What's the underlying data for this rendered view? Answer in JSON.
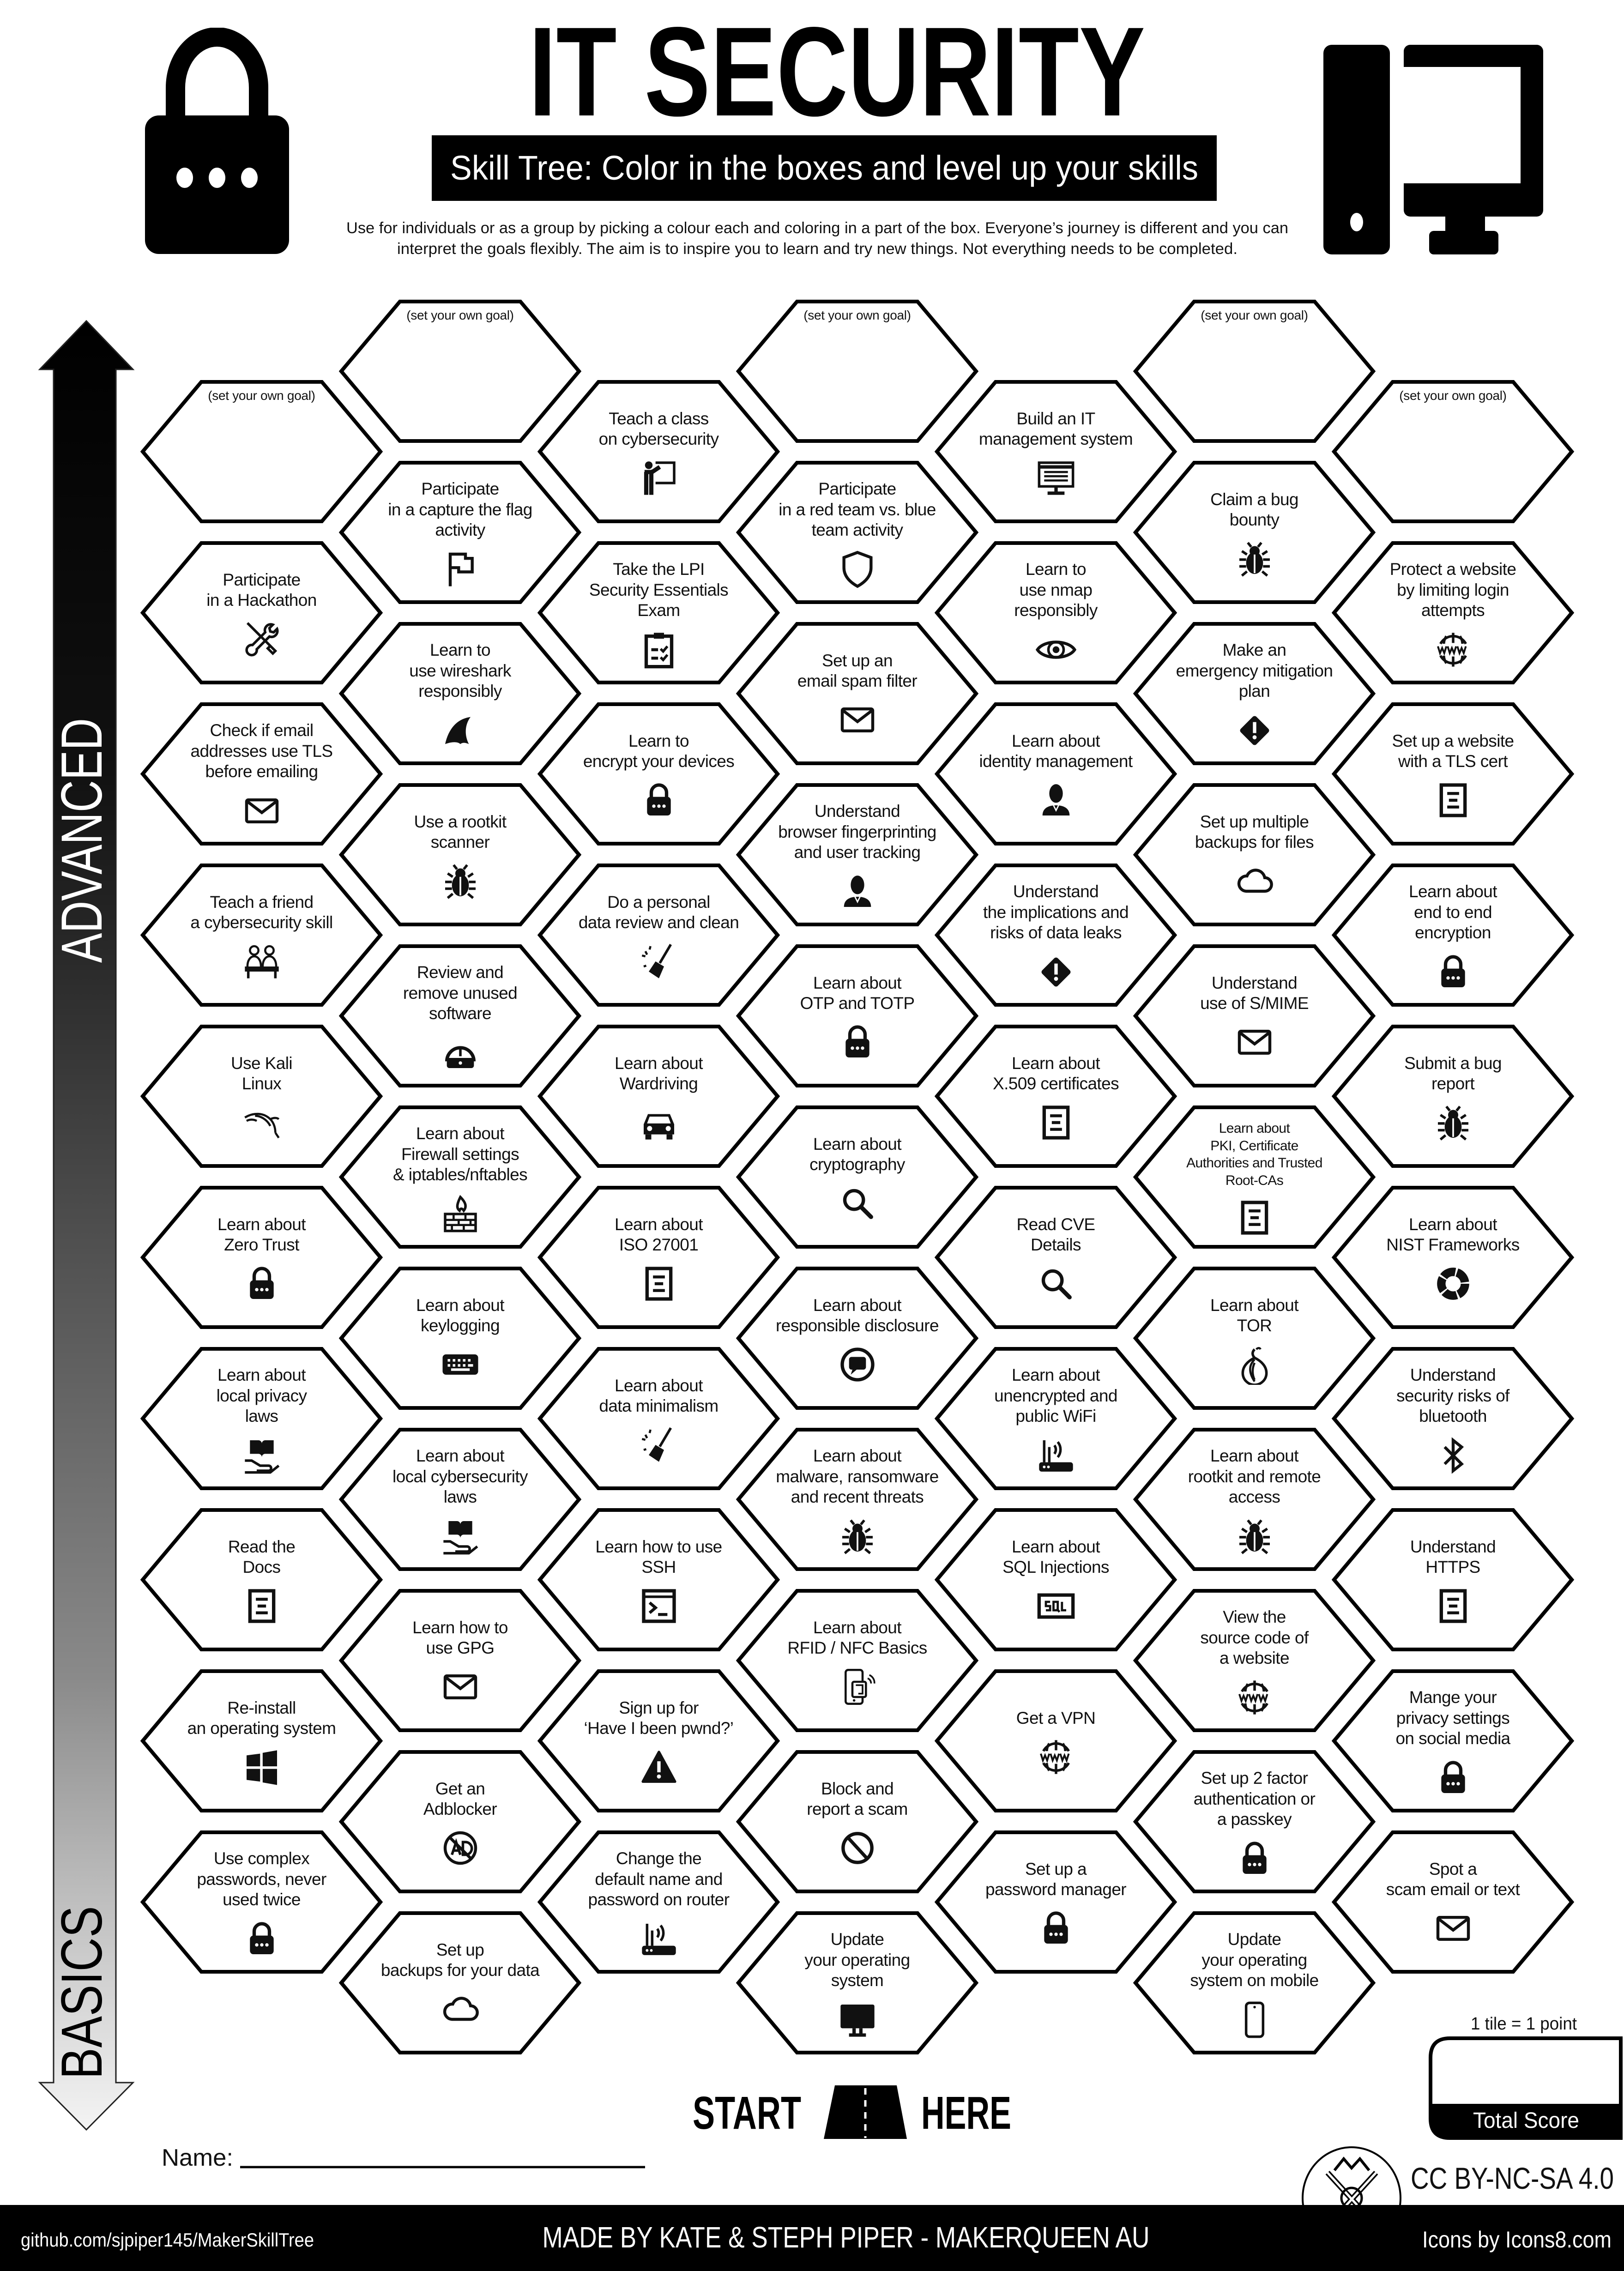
{
  "header": {
    "title": "IT SECURITY",
    "subtitle": "Skill Tree:  Color in the boxes and level up your skills",
    "description": [
      "Use for individuals or as a group by picking a colour each and coloring in a part of the box.  Everyone’s journey is different and you can",
      "interpret the goals flexibly.  The aim is to inspire you to learn and try new things. Not everything needs to be completed."
    ],
    "left_icon": "padlock-icon",
    "right_icon": "desktop-computer-icon"
  },
  "axis": {
    "top_label": "ADVANCED",
    "bottom_label": "BASICS"
  },
  "tiles": [
    [
      {
        "custom": "(set your own goal)"
      },
      {
        "lines": [
          "Participate",
          "in a Hackathon"
        ],
        "icon": "tools"
      },
      {
        "lines": [
          "Check if email",
          "addresses use TLS",
          "before emailing"
        ],
        "icon": "mail"
      },
      {
        "lines": [
          "Teach a friend",
          "a cybersecurity skill"
        ],
        "icon": "people"
      },
      {
        "lines": [
          "Use Kali",
          "Linux"
        ],
        "icon": "kali-dragon"
      },
      {
        "lines": [
          "Learn about",
          "Zero Trust"
        ],
        "icon": "lock"
      },
      {
        "lines": [
          "Learn about",
          "local privacy",
          "laws"
        ],
        "icon": "law-book"
      },
      {
        "lines": [
          "Read the",
          "Docs"
        ],
        "icon": "document"
      },
      {
        "lines": [
          "Re-install",
          "an operating system"
        ],
        "icon": "windows"
      },
      {
        "lines": [
          "Use complex",
          "passwords, never",
          "used twice"
        ],
        "icon": "lock"
      }
    ],
    [
      {
        "custom": "(set your own goal)"
      },
      {
        "lines": [
          "Participate",
          "in a capture the flag",
          "activity"
        ],
        "icon": "flag"
      },
      {
        "lines": [
          "Learn to",
          "use wireshark",
          "responsibly"
        ],
        "icon": "shark-fin"
      },
      {
        "lines": [
          "Use a rootkit",
          "scanner"
        ],
        "icon": "bug"
      },
      {
        "lines": [
          "Review and",
          "remove unused",
          "software"
        ],
        "icon": "uninstall"
      },
      {
        "lines": [
          "Learn about",
          "Firewall settings",
          "& iptables/nftables"
        ],
        "icon": "firewall"
      },
      {
        "lines": [
          "Learn about",
          "keylogging"
        ],
        "icon": "keyboard"
      },
      {
        "lines": [
          "Learn about",
          "local cybersecurity",
          "laws"
        ],
        "icon": "law-book"
      },
      {
        "lines": [
          "Learn how to",
          "use GPG"
        ],
        "icon": "mail"
      },
      {
        "lines": [
          "Get an",
          "Adblocker"
        ],
        "icon": "no-ad"
      },
      {
        "lines": [
          "Set up",
          "backups for your data"
        ],
        "icon": "cloud"
      }
    ],
    [
      {
        "lines": [
          "Teach a class",
          "on cybersecurity"
        ],
        "icon": "teacher"
      },
      {
        "lines": [
          "Take the LPI",
          "Security Essentials",
          "Exam"
        ],
        "icon": "clipboard"
      },
      {
        "lines": [
          "Learn to",
          "encrypt your devices"
        ],
        "icon": "lock"
      },
      {
        "lines": [
          "Do a personal",
          "data review and clean"
        ],
        "icon": "broom"
      },
      {
        "lines": [
          "Learn about",
          "Wardriving"
        ],
        "icon": "car"
      },
      {
        "lines": [
          "Learn about",
          "ISO 27001"
        ],
        "icon": "document"
      },
      {
        "lines": [
          "Learn about",
          "data minimalism"
        ],
        "icon": "broom"
      },
      {
        "lines": [
          "Learn how to use",
          "SSH"
        ],
        "icon": "terminal"
      },
      {
        "lines": [
          "Sign up for",
          "‘Have I been pwnd?’"
        ],
        "icon": "warning-triangle"
      },
      {
        "lines": [
          "Change the",
          "default name and",
          "password on router"
        ],
        "icon": "router"
      }
    ],
    [
      {
        "custom": "(set your own goal)"
      },
      {
        "lines": [
          "Participate",
          "in a red team vs. blue",
          "team activity"
        ],
        "icon": "shield"
      },
      {
        "lines": [
          "Set up an",
          "email spam filter"
        ],
        "icon": "mail"
      },
      {
        "lines": [
          "Understand",
          "browser fingerprinting",
          "and user tracking"
        ],
        "icon": "person"
      },
      {
        "lines": [
          "Learn about",
          "OTP and TOTP"
        ],
        "icon": "lock"
      },
      {
        "lines": [
          "Learn about",
          "cryptography"
        ],
        "icon": "search"
      },
      {
        "lines": [
          "Learn about",
          "responsible disclosure"
        ],
        "icon": "private-chat"
      },
      {
        "lines": [
          "Learn about",
          "malware, ransomware",
          "and recent threats"
        ],
        "icon": "bug"
      },
      {
        "lines": [
          "Learn about",
          "RFID / NFC Basics"
        ],
        "icon": "nfc-phone"
      },
      {
        "lines": [
          "Block and",
          "report a scam"
        ],
        "icon": "no-sign"
      },
      {
        "lines": [
          "Update",
          "your operating",
          "system"
        ],
        "icon": "monitor"
      }
    ],
    [
      {
        "lines": [
          "Build an IT",
          "management system"
        ],
        "icon": "monitor-lines"
      },
      {
        "lines": [
          "Learn to",
          "use nmap",
          "responsibly"
        ],
        "icon": "eye"
      },
      {
        "lines": [
          "Learn about",
          "identity management"
        ],
        "icon": "person"
      },
      {
        "lines": [
          "Understand",
          "the implications and",
          "risks of data leaks"
        ],
        "icon": "warning-diamond"
      },
      {
        "lines": [
          "Learn about",
          "X.509 certificates"
        ],
        "icon": "document"
      },
      {
        "lines": [
          "Read CVE",
          "Details"
        ],
        "icon": "search"
      },
      {
        "lines": [
          "Learn about",
          "unencrypted and",
          "public WiFi"
        ],
        "icon": "router"
      },
      {
        "lines": [
          "Learn about",
          "SQL Injections"
        ],
        "icon": "sql"
      },
      {
        "lines": [
          "Get a VPN"
        ],
        "icon": "www"
      },
      {
        "lines": [
          "Set up a",
          "password manager"
        ],
        "icon": "lock"
      }
    ],
    [
      {
        "custom": "(set your own goal)"
      },
      {
        "lines": [
          "Claim a bug",
          "bounty"
        ],
        "icon": "bug"
      },
      {
        "lines": [
          "Make an",
          "emergency mitigation",
          "plan"
        ],
        "icon": "warning-diamond"
      },
      {
        "lines": [
          "Set up multiple",
          "backups for files"
        ],
        "icon": "cloud"
      },
      {
        "lines": [
          "Understand",
          "use of S/MIME"
        ],
        "icon": "mail"
      },
      {
        "lines": [
          "Learn about",
          "PKI, Certificate",
          "Authorities and Trusted",
          "Root-CAs"
        ],
        "icon": "document"
      },
      {
        "lines": [
          "Learn about",
          "TOR"
        ],
        "icon": "onion"
      },
      {
        "lines": [
          "Learn about",
          "rootkit and remote",
          "access"
        ],
        "icon": "bug"
      },
      {
        "lines": [
          "View the",
          "source code of",
          "a website"
        ],
        "icon": "www"
      },
      {
        "lines": [
          "Set up 2 factor",
          "authentication or",
          "a passkey"
        ],
        "icon": "lock"
      },
      {
        "lines": [
          "Update",
          "your operating",
          "system on mobile"
        ],
        "icon": "phone"
      }
    ],
    [
      {
        "custom": "(set your own goal)"
      },
      {
        "lines": [
          "Protect a website",
          "by limiting login",
          "attempts"
        ],
        "icon": "www"
      },
      {
        "lines": [
          "Set up a website",
          "with a TLS cert"
        ],
        "icon": "document"
      },
      {
        "lines": [
          "Learn about",
          "end to end",
          "encryption"
        ],
        "icon": "lock"
      },
      {
        "lines": [
          "Submit a bug",
          "report"
        ],
        "icon": "bug"
      },
      {
        "lines": [
          "Learn about",
          "NIST Frameworks"
        ],
        "icon": "segmented-circle"
      },
      {
        "lines": [
          "Understand",
          "security risks of",
          "bluetooth"
        ],
        "icon": "bluetooth"
      },
      {
        "lines": [
          "Understand",
          "HTTPS"
        ],
        "icon": "document"
      },
      {
        "lines": [
          "Mange your",
          "privacy settings",
          "on social media"
        ],
        "icon": "lock"
      },
      {
        "lines": [
          "Spot a",
          "scam email or text"
        ],
        "icon": "mail"
      }
    ]
  ],
  "start": {
    "left": "START",
    "right": "HERE",
    "icon": "road-icon"
  },
  "name_label": "Name:",
  "score": {
    "rule": "1 tile = 1 point",
    "label": "Total Score"
  },
  "license": "CC BY-NC-SA 4.0",
  "footer": {
    "repo": "github.com/sjpiper145/MakerSkillTree",
    "credit": "MADE BY KATE & STEPH PIPER  -  MAKERQUEEN AU",
    "icons_credit": "Icons by Icons8.com"
  },
  "colors": {
    "ink": "#111111",
    "paper": "#ffffff"
  }
}
